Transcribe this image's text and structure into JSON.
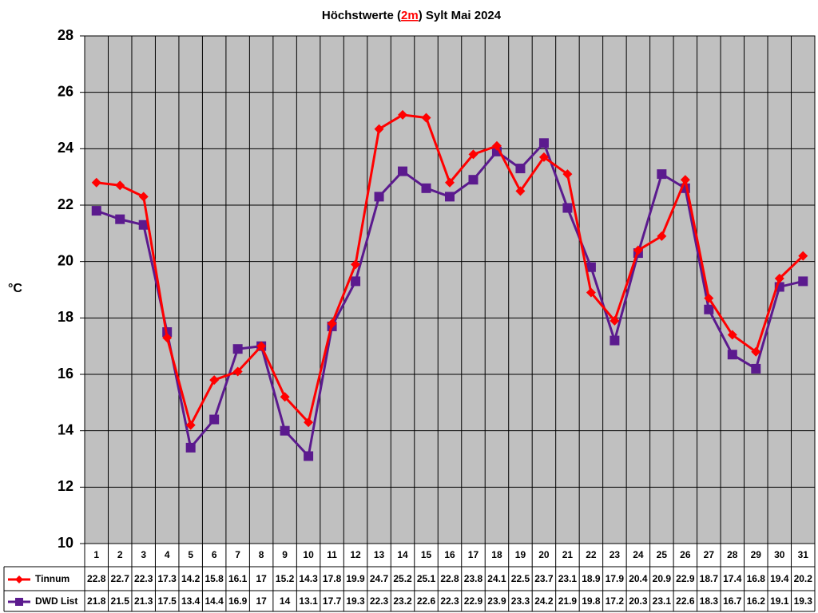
{
  "chart_data": {
    "type": "line",
    "title_parts": [
      "Höchstwerte (",
      "2m",
      ") Sylt Mai 2024"
    ],
    "ylabel": "°C",
    "categories": [
      "1",
      "2",
      "3",
      "4",
      "5",
      "6",
      "7",
      "8",
      "9",
      "10",
      "11",
      "12",
      "13",
      "14",
      "15",
      "16",
      "17",
      "18",
      "19",
      "20",
      "21",
      "22",
      "23",
      "24",
      "25",
      "26",
      "27",
      "28",
      "29",
      "30",
      "31"
    ],
    "series": [
      {
        "name": "Tinnum",
        "color": "#ff0000",
        "marker": "diamond",
        "values": [
          22.8,
          22.7,
          22.3,
          17.3,
          14.2,
          15.8,
          16.1,
          17,
          15.2,
          14.3,
          17.8,
          19.9,
          24.7,
          25.2,
          25.1,
          22.8,
          23.8,
          24.1,
          22.5,
          23.7,
          23.1,
          18.9,
          17.9,
          20.4,
          20.9,
          22.9,
          18.7,
          17.4,
          16.8,
          19.4,
          20.2
        ]
      },
      {
        "name": "DWD List",
        "color": "#5b1a8e",
        "marker": "square",
        "values": [
          21.8,
          21.5,
          21.3,
          17.5,
          13.4,
          14.4,
          16.9,
          17,
          14,
          13.1,
          17.7,
          19.3,
          22.3,
          23.2,
          22.6,
          22.3,
          22.9,
          23.9,
          23.3,
          24.2,
          21.9,
          19.8,
          17.2,
          20.3,
          23.1,
          22.6,
          18.3,
          16.7,
          16.2,
          19.1,
          19.3
        ]
      }
    ],
    "ylim": [
      10,
      28
    ],
    "yticks": [
      10,
      12,
      14,
      16,
      18,
      20,
      22,
      24,
      26,
      28
    ],
    "grid": true,
    "data_table": true
  }
}
